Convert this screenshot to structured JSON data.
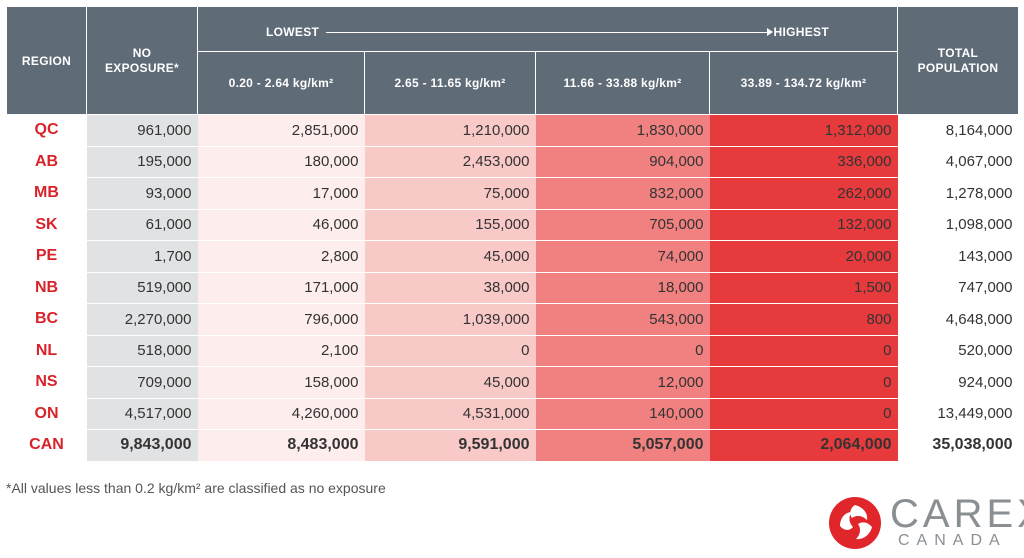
{
  "header": {
    "region": "REGION",
    "no_exposure": "NO EXPOSURE*",
    "lowest": "LOWEST",
    "highest": "HIGHEST",
    "ranges": [
      "0.20 - 2.64 kg/km²",
      "2.65 - 11.65 kg/km²",
      "11.66 - 33.88 kg/km²",
      "33.89 - 134.72 kg/km²"
    ],
    "total_population": "TOTAL POPULATION"
  },
  "chart_data": {
    "type": "table",
    "columns": [
      "REGION",
      "NO EXPOSURE*",
      "0.20 - 2.64 kg/km²",
      "2.65 - 11.65 kg/km²",
      "11.66 - 33.88 kg/km²",
      "33.89 - 134.72 kg/km²",
      "TOTAL POPULATION"
    ],
    "rows": [
      [
        "QC",
        "961,000",
        "2,851,000",
        "1,210,000",
        "1,830,000",
        "1,312,000",
        "8,164,000"
      ],
      [
        "AB",
        "195,000",
        "180,000",
        "2,453,000",
        "904,000",
        "336,000",
        "4,067,000"
      ],
      [
        "MB",
        "93,000",
        "17,000",
        "75,000",
        "832,000",
        "262,000",
        "1,278,000"
      ],
      [
        "SK",
        "61,000",
        "46,000",
        "155,000",
        "705,000",
        "132,000",
        "1,098,000"
      ],
      [
        "PE",
        "1,700",
        "2,800",
        "45,000",
        "74,000",
        "20,000",
        "143,000"
      ],
      [
        "NB",
        "519,000",
        "171,000",
        "38,000",
        "18,000",
        "1,500",
        "747,000"
      ],
      [
        "BC",
        "2,270,000",
        "796,000",
        "1,039,000",
        "543,000",
        "800",
        "4,648,000"
      ],
      [
        "NL",
        "518,000",
        "2,100",
        "0",
        "0",
        "0",
        "520,000"
      ],
      [
        "NS",
        "709,000",
        "158,000",
        "45,000",
        "12,000",
        "0",
        "924,000"
      ],
      [
        "ON",
        "4,517,000",
        "4,260,000",
        "4,531,000",
        "140,000",
        "0",
        "13,449,000"
      ]
    ],
    "total_row": [
      "CAN",
      "9,843,000",
      "8,483,000",
      "9,591,000",
      "5,057,000",
      "2,064,000",
      "35,038,000"
    ]
  },
  "colors": {
    "header_bg": "#5f6b77",
    "no_exposure": "#e1e2e4",
    "level_1": "#fdeeed",
    "level_2": "#f9c9c8",
    "level_3": "#f18180",
    "level_4": "#e73a3d",
    "region_text": "#d9232a"
  },
  "footnote": "*All values less than 0.2 kg/km² are classified as no exposure",
  "logo": {
    "word": "CAREX",
    "sub": "CANADA"
  }
}
